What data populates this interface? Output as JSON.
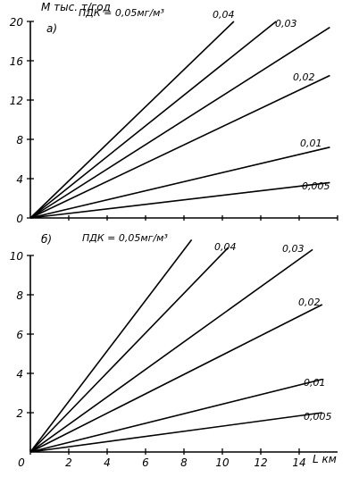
{
  "chart_data": [
    {
      "type": "line",
      "panel_label": "а)",
      "ylabel": "М тыс. т/год",
      "xlabel": "",
      "yticks": [
        "0",
        "4",
        "8",
        "12",
        "16",
        "20"
      ],
      "ylim": [
        0,
        20
      ],
      "xlim": [
        0,
        16
      ],
      "legend_prefix": "ПДК = ",
      "series": [
        {
          "name": "0,05мг/м³",
          "x": [
            0,
            10.6
          ],
          "y": [
            0,
            20
          ]
        },
        {
          "name": "0,04",
          "x": [
            0,
            12.8
          ],
          "y": [
            0,
            20
          ]
        },
        {
          "name": "0,03",
          "x": [
            0,
            15.6
          ],
          "y": [
            0,
            19.4
          ]
        },
        {
          "name": "0,02",
          "x": [
            0,
            15.6
          ],
          "y": [
            0,
            14.5
          ]
        },
        {
          "name": "0,01",
          "x": [
            0,
            15.6
          ],
          "y": [
            0,
            7.2
          ]
        },
        {
          "name": "0,005",
          "x": [
            0,
            15.6
          ],
          "y": [
            0,
            3.6
          ]
        }
      ]
    },
    {
      "type": "line",
      "panel_label": "б)",
      "ylabel": "",
      "xlabel": "L км",
      "yticks": [
        "2",
        "4",
        "6",
        "8",
        "10"
      ],
      "xticks": [
        "0",
        "2",
        "4",
        "6",
        "8",
        "10",
        "12",
        "14"
      ],
      "ylim": [
        0,
        10
      ],
      "xlim": [
        0,
        16
      ],
      "legend_prefix": "ПДК = ",
      "series": [
        {
          "name": "0,05мг/м³",
          "x": [
            0,
            8.4
          ],
          "y": [
            0,
            10.8
          ]
        },
        {
          "name": "0,04",
          "x": [
            0,
            10.3
          ],
          "y": [
            0,
            10.4
          ]
        },
        {
          "name": "0,03",
          "x": [
            0,
            14.7
          ],
          "y": [
            0,
            10.3
          ]
        },
        {
          "name": "0,02",
          "x": [
            0,
            15.2
          ],
          "y": [
            0,
            7.5
          ]
        },
        {
          "name": "0,01",
          "x": [
            0,
            15.2
          ],
          "y": [
            0,
            3.7
          ]
        },
        {
          "name": "0,005",
          "x": [
            0,
            15.2
          ],
          "y": [
            0,
            2.0
          ]
        }
      ]
    }
  ]
}
